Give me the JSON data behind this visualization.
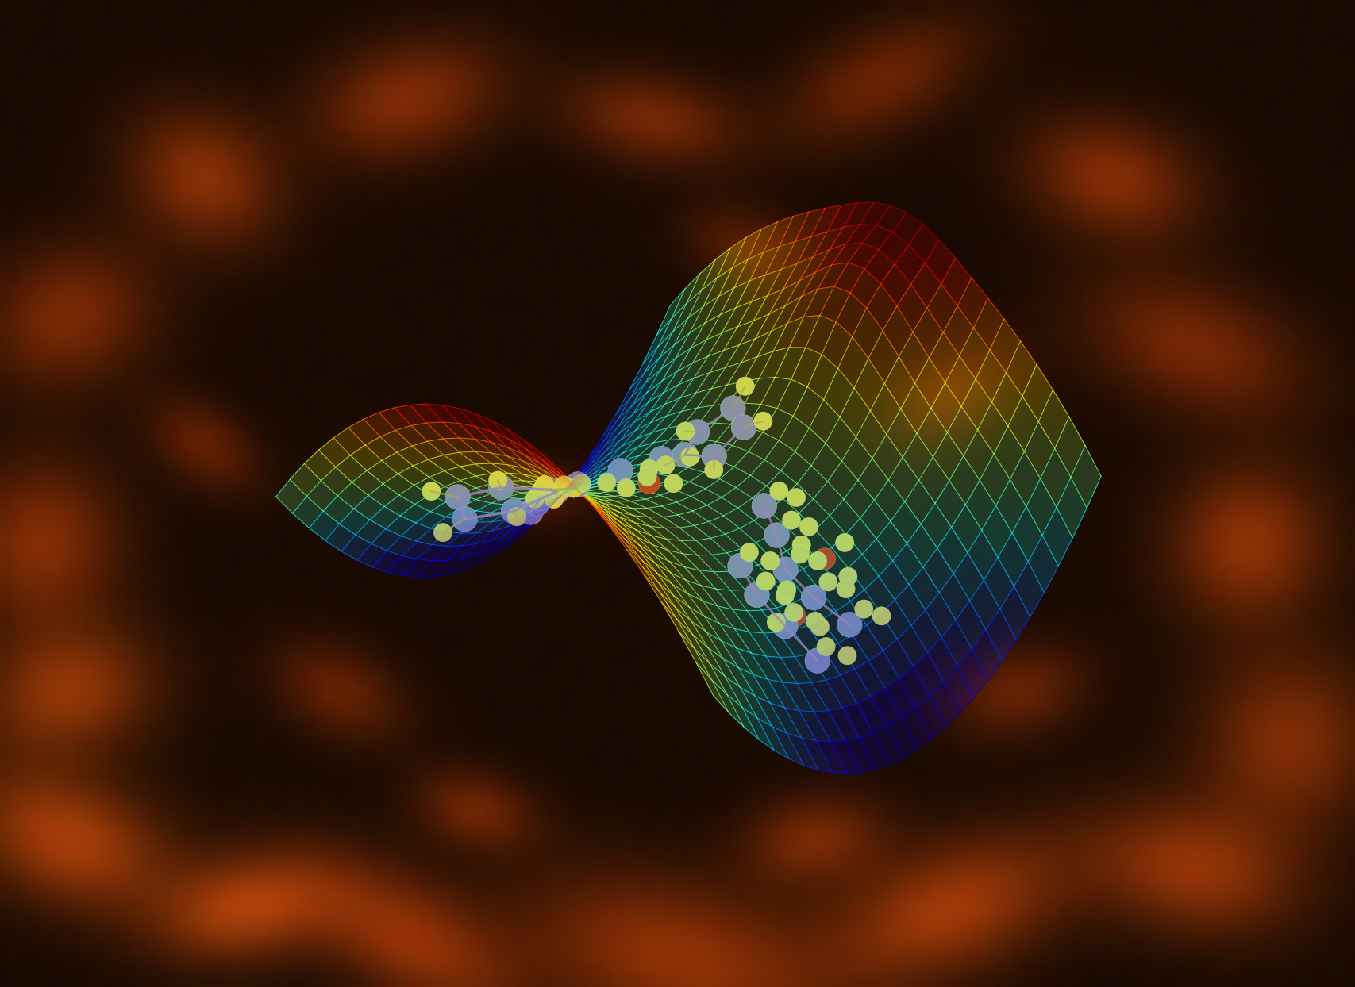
{
  "figure_size": [
    17.08,
    12.44
  ],
  "dpi": 100,
  "background_color": "#1a0800",
  "atom_colors": {
    "carbon": "#8878aa",
    "hydrogen": "#d8c84a",
    "oxygen": "#cc2200"
  },
  "surface": {
    "N": 28,
    "x_range": [
      -3.2,
      3.2
    ],
    "y_range": [
      -2.5,
      2.5
    ],
    "wireframe_color_low": "#00ccff",
    "wireframe_color_high": "#ff4400",
    "surface_alpha": 0.18,
    "wire_alpha": 0.85,
    "wire_lw": 0.7
  },
  "view": {
    "elev": 28,
    "azim": -48
  }
}
